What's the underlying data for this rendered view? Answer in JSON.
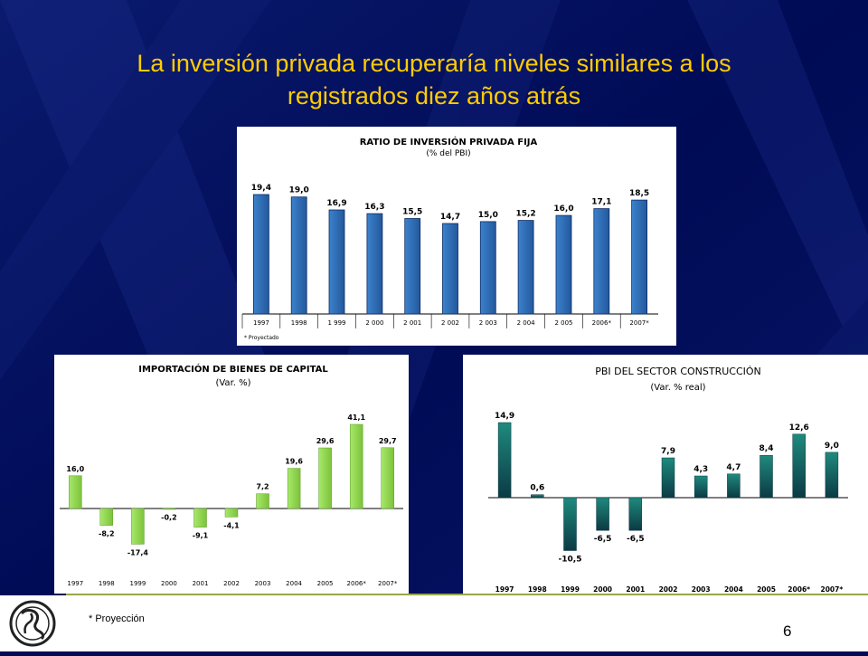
{
  "slide": {
    "title_line1": "La inversión privada recuperaría niveles similares a los",
    "title_line2": "registrados diez años atrás",
    "footnote": "* Proyección",
    "page_number": "6"
  },
  "colors": {
    "background": "#000b55",
    "title": "#ffcc00",
    "chart1_bar": "#2e6db6",
    "chart2_bar": "#99dd55",
    "chart3_bar": "#1a6a62"
  },
  "logo": {
    "icon": "bcrp-seal-icon"
  },
  "chart_data": [
    {
      "type": "bar",
      "title": "RATIO DE INVERSIÓN PRIVADA FIJA",
      "subtitle": "(% del PBI)",
      "note": "* Proyectado",
      "categories": [
        "1997",
        "1998",
        "1 999",
        "2 000",
        "2 001",
        "2 002",
        "2 003",
        "2 004",
        "2 005",
        "2006*",
        "2007*"
      ],
      "values": [
        19.4,
        19.0,
        16.9,
        16.3,
        15.5,
        14.7,
        15.0,
        15.2,
        16.0,
        17.1,
        18.5
      ],
      "value_labels": [
        "19,4",
        "19,0",
        "16,9",
        "16,3",
        "15,5",
        "14,7",
        "15,0",
        "15,2",
        "16,0",
        "17,1",
        "18,5"
      ],
      "ylim": [
        0,
        20.5
      ],
      "grid": false
    },
    {
      "type": "bar",
      "title": "IMPORTACIÓN DE BIENES DE CAPITAL",
      "subtitle": "(Var. %)",
      "categories": [
        "1997",
        "1998",
        "1999",
        "2000",
        "2001",
        "2002",
        "2003",
        "2004",
        "2005",
        "2006*",
        "2007*"
      ],
      "values": [
        16.0,
        -8.2,
        -17.4,
        -0.2,
        -9.1,
        -4.1,
        7.2,
        19.6,
        29.6,
        41.1,
        29.7
      ],
      "value_labels": [
        "16,0",
        "-8,2",
        "-17,4",
        "-0,2",
        "-9,1",
        "-4,1",
        "7,2",
        "19,6",
        "29,6",
        "41,1",
        "29,7"
      ],
      "ylim": [
        -20,
        42
      ],
      "grid": false
    },
    {
      "type": "bar",
      "title": "PBI DEL SECTOR CONSTRUCCIÓN",
      "subtitle": "(Var. % real)",
      "categories": [
        "1997",
        "1998",
        "1999",
        "2000",
        "2001",
        "2002",
        "2003",
        "2004",
        "2005",
        "2006*",
        "2007*"
      ],
      "values": [
        14.9,
        0.6,
        -10.5,
        -6.5,
        -6.5,
        7.9,
        4.3,
        4.7,
        8.4,
        12.6,
        9.0
      ],
      "value_labels": [
        "14,9",
        "0,6",
        "-10,5",
        "-6,5",
        "-6,5",
        "7,9",
        "4,3",
        "4,7",
        "8,4",
        "12,6",
        "9,0"
      ],
      "ylim": [
        -12,
        15
      ],
      "grid": false
    }
  ]
}
